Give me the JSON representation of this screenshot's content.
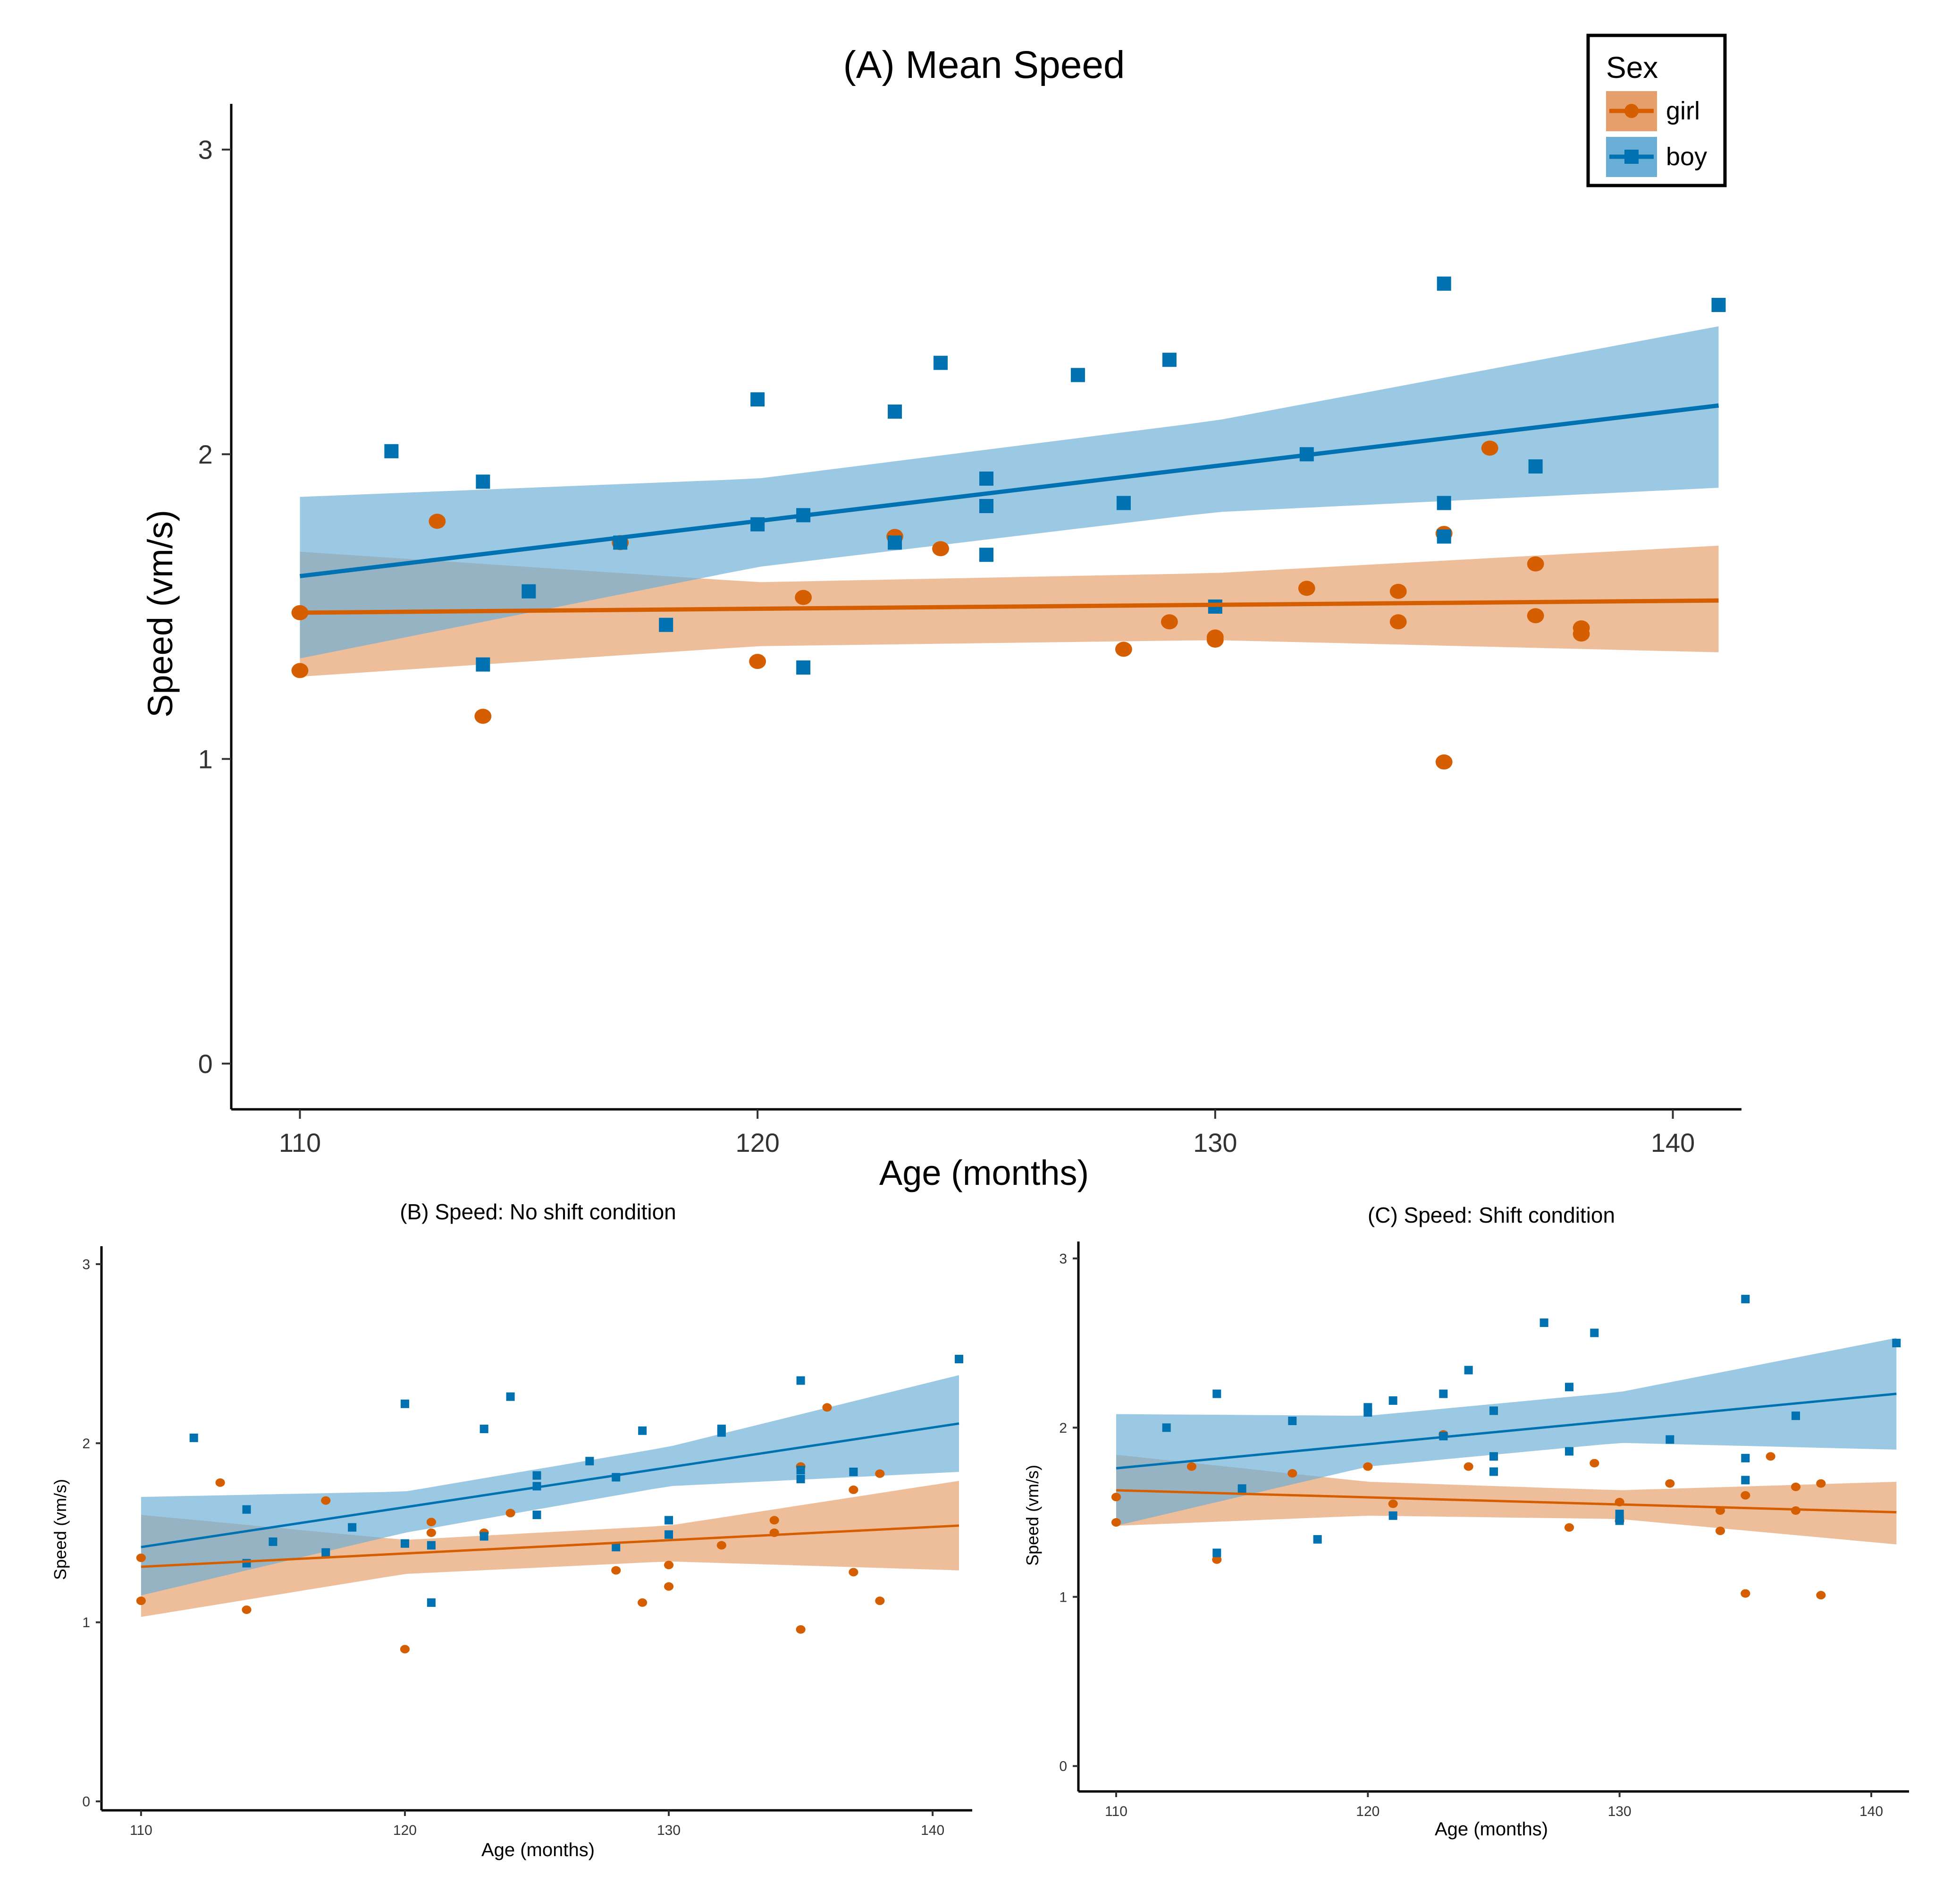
{
  "colors": {
    "girl": "#D55E00",
    "boy": "#0072B2",
    "girl_band": "#E69F6B",
    "boy_band": "#6BAED6"
  },
  "legend": {
    "title": "Sex",
    "items": [
      {
        "key": "girl",
        "label": "girl"
      },
      {
        "key": "boy",
        "label": "boy"
      }
    ]
  },
  "chart_data": [
    {
      "id": "A",
      "type": "scatter",
      "title": "(A) Mean Speed",
      "xlabel": "Age (months)",
      "ylabel": "Speed (vm/s)",
      "xlim": [
        108.5,
        141.5
      ],
      "ylim": [
        -0.15,
        3.15
      ],
      "xticks": [
        110,
        120,
        130,
        140
      ],
      "yticks": [
        0,
        1,
        2,
        3
      ],
      "series": [
        {
          "name": "girl",
          "marker": "circle",
          "points": [
            [
              110,
              1.48
            ],
            [
              110,
              1.29
            ],
            [
              113,
              1.78
            ],
            [
              114,
              1.14
            ],
            [
              117,
              1.71
            ],
            [
              120,
              1.32
            ],
            [
              121,
              1.53
            ],
            [
              123,
              1.73
            ],
            [
              124,
              1.69
            ],
            [
              128,
              1.36
            ],
            [
              129,
              1.45
            ],
            [
              130,
              1.39
            ],
            [
              130,
              1.4
            ],
            [
              132,
              1.56
            ],
            [
              134,
              1.55
            ],
            [
              134,
              1.45
            ],
            [
              135,
              1.74
            ],
            [
              135,
              0.99
            ],
            [
              136,
              2.02
            ],
            [
              137,
              1.64
            ],
            [
              137,
              1.47
            ],
            [
              138,
              1.43
            ],
            [
              138,
              1.41
            ]
          ],
          "fit": [
            [
              110,
              1.48
            ],
            [
              141,
              1.52
            ]
          ],
          "band": {
            "x": [
              110,
              120,
              130,
              141
            ],
            "lower": [
              1.27,
              1.37,
              1.39,
              1.35
            ],
            "upper": [
              1.68,
              1.58,
              1.61,
              1.7
            ]
          }
        },
        {
          "name": "boy",
          "marker": "square",
          "points": [
            [
              112,
              2.01
            ],
            [
              114,
              1.91
            ],
            [
              114,
              1.31
            ],
            [
              115,
              1.55
            ],
            [
              117,
              1.71
            ],
            [
              118,
              1.44
            ],
            [
              120,
              2.18
            ],
            [
              120,
              1.77
            ],
            [
              121,
              1.8
            ],
            [
              121,
              1.3
            ],
            [
              123,
              2.14
            ],
            [
              123,
              1.71
            ],
            [
              124,
              2.3
            ],
            [
              125,
              1.92
            ],
            [
              125,
              1.83
            ],
            [
              125,
              1.67
            ],
            [
              127,
              2.26
            ],
            [
              128,
              1.84
            ],
            [
              129,
              2.31
            ],
            [
              130,
              1.5
            ],
            [
              132,
              2.0
            ],
            [
              135,
              2.56
            ],
            [
              135,
              1.84
            ],
            [
              135,
              1.73
            ],
            [
              137,
              1.96
            ],
            [
              141,
              2.49
            ]
          ],
          "fit": [
            [
              110,
              1.6
            ],
            [
              141,
              2.16
            ]
          ],
          "band": {
            "x": [
              110,
              120,
              130,
              141
            ],
            "lower": [
              1.33,
              1.63,
              1.81,
              1.89
            ],
            "upper": [
              1.86,
              1.92,
              2.11,
              2.42
            ]
          }
        }
      ]
    },
    {
      "id": "B",
      "type": "scatter",
      "title": "(B) Speed: No shift condition",
      "xlabel": "Age (months)",
      "ylabel": "Speed (vm/s)",
      "xlim": [
        108.5,
        141.5
      ],
      "ylim": [
        -0.05,
        3.1
      ],
      "xticks": [
        110,
        120,
        130,
        140
      ],
      "yticks": [
        0,
        1,
        2,
        3
      ],
      "series": [
        {
          "name": "girl",
          "marker": "circle",
          "points": [
            [
              110,
              1.36
            ],
            [
              110,
              1.12
            ],
            [
              113,
              1.78
            ],
            [
              114,
              1.07
            ],
            [
              117,
              1.68
            ],
            [
              120,
              0.85
            ],
            [
              121,
              1.56
            ],
            [
              121,
              1.5
            ],
            [
              123,
              1.5
            ],
            [
              124,
              1.61
            ],
            [
              128,
              1.29
            ],
            [
              129,
              1.11
            ],
            [
              130,
              1.32
            ],
            [
              130,
              1.2
            ],
            [
              132,
              1.43
            ],
            [
              134,
              1.57
            ],
            [
              134,
              1.5
            ],
            [
              135,
              1.87
            ],
            [
              135,
              0.96
            ],
            [
              136,
              2.2
            ],
            [
              137,
              1.74
            ],
            [
              137,
              1.28
            ],
            [
              138,
              1.83
            ],
            [
              138,
              1.12
            ]
          ],
          "fit": [
            [
              110,
              1.31
            ],
            [
              141,
              1.54
            ]
          ],
          "band": {
            "x": [
              110,
              120,
              130,
              141
            ],
            "lower": [
              1.03,
              1.27,
              1.34,
              1.29
            ],
            "upper": [
              1.6,
              1.46,
              1.54,
              1.79
            ]
          }
        },
        {
          "name": "boy",
          "marker": "square",
          "points": [
            [
              112,
              2.03
            ],
            [
              114,
              1.63
            ],
            [
              114,
              1.33
            ],
            [
              115,
              1.45
            ],
            [
              117,
              1.39
            ],
            [
              118,
              1.53
            ],
            [
              120,
              2.22
            ],
            [
              120,
              1.44
            ],
            [
              121,
              1.43
            ],
            [
              121,
              1.11
            ],
            [
              123,
              2.08
            ],
            [
              123,
              1.48
            ],
            [
              124,
              2.26
            ],
            [
              125,
              1.82
            ],
            [
              125,
              1.76
            ],
            [
              125,
              1.6
            ],
            [
              127,
              1.9
            ],
            [
              128,
              1.81
            ],
            [
              128,
              1.42
            ],
            [
              129,
              2.07
            ],
            [
              130,
              1.57
            ],
            [
              130,
              1.49
            ],
            [
              132,
              2.08
            ],
            [
              132,
              2.06
            ],
            [
              135,
              2.35
            ],
            [
              135,
              1.85
            ],
            [
              135,
              1.8
            ],
            [
              137,
              1.84
            ],
            [
              141,
              2.47
            ]
          ],
          "fit": [
            [
              110,
              1.42
            ],
            [
              141,
              2.11
            ]
          ],
          "band": {
            "x": [
              110,
              120,
              130,
              141
            ],
            "lower": [
              1.15,
              1.5,
              1.76,
              1.84
            ],
            "upper": [
              1.7,
              1.73,
              1.98,
              2.38
            ]
          }
        }
      ]
    },
    {
      "id": "C",
      "type": "scatter",
      "title": "(C) Speed: Shift condition",
      "xlabel": "Age (months)",
      "ylabel": "Speed (vm/s)",
      "xlim": [
        108.5,
        141.5
      ],
      "ylim": [
        -0.15,
        3.1
      ],
      "xticks": [
        110,
        120,
        130,
        140
      ],
      "yticks": [
        0,
        1,
        2,
        3
      ],
      "series": [
        {
          "name": "girl",
          "marker": "circle",
          "points": [
            [
              110,
              1.59
            ],
            [
              110,
              1.44
            ],
            [
              113,
              1.77
            ],
            [
              114,
              1.22
            ],
            [
              117,
              1.73
            ],
            [
              120,
              1.77
            ],
            [
              121,
              1.55
            ],
            [
              123,
              1.96
            ],
            [
              124,
              1.77
            ],
            [
              128,
              1.41
            ],
            [
              129,
              1.79
            ],
            [
              130,
              1.56
            ],
            [
              130,
              1.45
            ],
            [
              132,
              1.67
            ],
            [
              134,
              1.51
            ],
            [
              134,
              1.39
            ],
            [
              135,
              1.6
            ],
            [
              135,
              1.02
            ],
            [
              136,
              1.83
            ],
            [
              137,
              1.65
            ],
            [
              137,
              1.51
            ],
            [
              138,
              1.67
            ],
            [
              138,
              1.01
            ]
          ],
          "fit": [
            [
              110,
              1.63
            ],
            [
              141,
              1.5
            ]
          ],
          "band": {
            "x": [
              110,
              120,
              130,
              141
            ],
            "lower": [
              1.42,
              1.48,
              1.46,
              1.31
            ],
            "upper": [
              1.84,
              1.68,
              1.63,
              1.68
            ]
          }
        },
        {
          "name": "boy",
          "marker": "square",
          "points": [
            [
              112,
              2.0
            ],
            [
              114,
              2.2
            ],
            [
              114,
              1.26
            ],
            [
              115,
              1.64
            ],
            [
              117,
              2.04
            ],
            [
              118,
              1.34
            ],
            [
              120,
              2.12
            ],
            [
              120,
              2.09
            ],
            [
              121,
              2.16
            ],
            [
              121,
              1.48
            ],
            [
              123,
              2.2
            ],
            [
              123,
              1.95
            ],
            [
              124,
              2.34
            ],
            [
              125,
              2.1
            ],
            [
              125,
              1.83
            ],
            [
              125,
              1.74
            ],
            [
              127,
              2.62
            ],
            [
              128,
              2.24
            ],
            [
              128,
              1.86
            ],
            [
              129,
              2.56
            ],
            [
              130,
              1.49
            ],
            [
              130,
              1.45
            ],
            [
              132,
              1.93
            ],
            [
              135,
              2.76
            ],
            [
              135,
              1.82
            ],
            [
              135,
              1.69
            ],
            [
              137,
              2.07
            ],
            [
              141,
              2.5
            ]
          ],
          "fit": [
            [
              110,
              1.76
            ],
            [
              141,
              2.2
            ]
          ],
          "band": {
            "x": [
              110,
              120,
              130,
              141
            ],
            "lower": [
              1.42,
              1.77,
              1.91,
              1.87
            ],
            "upper": [
              2.08,
              2.07,
              2.21,
              2.53
            ]
          }
        }
      ]
    }
  ]
}
